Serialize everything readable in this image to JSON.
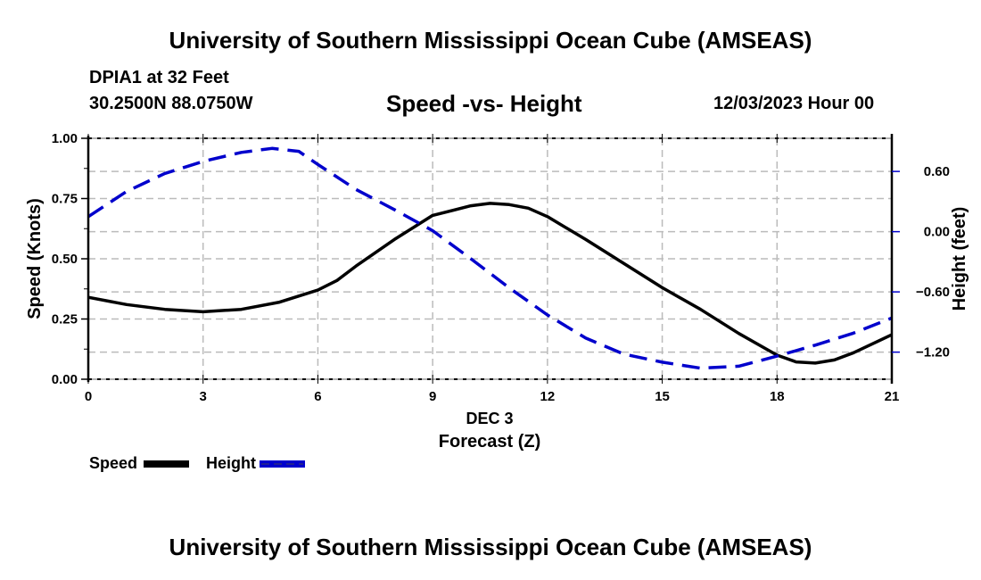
{
  "header": {
    "main_title": "University of Southern Mississippi Ocean Cube (AMSEAS)",
    "station": "DPIA1 at 32 Feet",
    "coordinates": "30.2500N  88.0750W",
    "subtitle": "Speed -vs- Height",
    "datetime": "12/03/2023 Hour 00"
  },
  "footer": {
    "title": "University of Southern Mississippi Ocean Cube (AMSEAS)"
  },
  "colors": {
    "speed": "#000000",
    "height": "#0000cc",
    "grid": "#bbbbbb"
  },
  "chart_data": {
    "type": "line",
    "title": "Speed -vs- Height",
    "xlabel": "Forecast (Z)",
    "xlabel_date": "DEC 3",
    "ylabel": "Speed (Knots)",
    "y2label": "Height (feet)",
    "xlim": [
      0,
      21
    ],
    "ylim": [
      0,
      1.0
    ],
    "y2lim": [
      -1.47,
      0.93
    ],
    "x_ticks": [
      0,
      3,
      6,
      9,
      12,
      15,
      18,
      21
    ],
    "x_tick_labels": [
      "0",
      "3",
      "6",
      "9",
      "12",
      "15",
      "18",
      "21"
    ],
    "y_ticks": [
      0.0,
      0.25,
      0.5,
      0.75,
      1.0
    ],
    "y_tick_labels": [
      "0.00",
      "0.25",
      "0.50",
      "0.75",
      "1.00"
    ],
    "y2_ticks": [
      0.6,
      0.0,
      -0.6,
      -1.2
    ],
    "y2_tick_labels": [
      "0.60",
      "0.00",
      "−0.60",
      "−1.20"
    ],
    "grid": true,
    "legend": {
      "placement": "bottom-left",
      "entries": [
        {
          "label": "Speed",
          "style": "solid"
        },
        {
          "label": "Height",
          "style": "dashed"
        }
      ]
    },
    "series": [
      {
        "name": "Speed",
        "axis": "left",
        "style": "solid",
        "x": [
          0,
          1,
          2,
          3,
          4,
          5,
          6,
          6.5,
          7,
          8,
          9,
          10,
          10.5,
          11,
          11.5,
          12,
          13,
          14,
          15,
          16,
          17,
          18,
          18.5,
          19,
          19.5,
          20,
          21
        ],
        "values": [
          0.34,
          0.31,
          0.29,
          0.28,
          0.29,
          0.32,
          0.37,
          0.41,
          0.47,
          0.58,
          0.68,
          0.72,
          0.73,
          0.725,
          0.71,
          0.675,
          0.58,
          0.48,
          0.38,
          0.29,
          0.19,
          0.1,
          0.072,
          0.067,
          0.08,
          0.11,
          0.185
        ]
      },
      {
        "name": "Height",
        "axis": "right",
        "style": "dashed",
        "x": [
          0,
          1,
          2,
          3,
          4,
          4.8,
          5.5,
          6,
          7,
          8,
          9,
          10,
          11,
          12,
          13,
          14,
          15,
          16,
          17,
          18,
          19,
          20,
          21
        ],
        "values": [
          0.15,
          0.4,
          0.58,
          0.7,
          0.79,
          0.83,
          0.8,
          0.67,
          0.42,
          0.22,
          0.01,
          -0.27,
          -0.56,
          -0.83,
          -1.06,
          -1.22,
          -1.3,
          -1.36,
          -1.34,
          -1.24,
          -1.13,
          -1.01,
          -0.86
        ]
      }
    ]
  }
}
